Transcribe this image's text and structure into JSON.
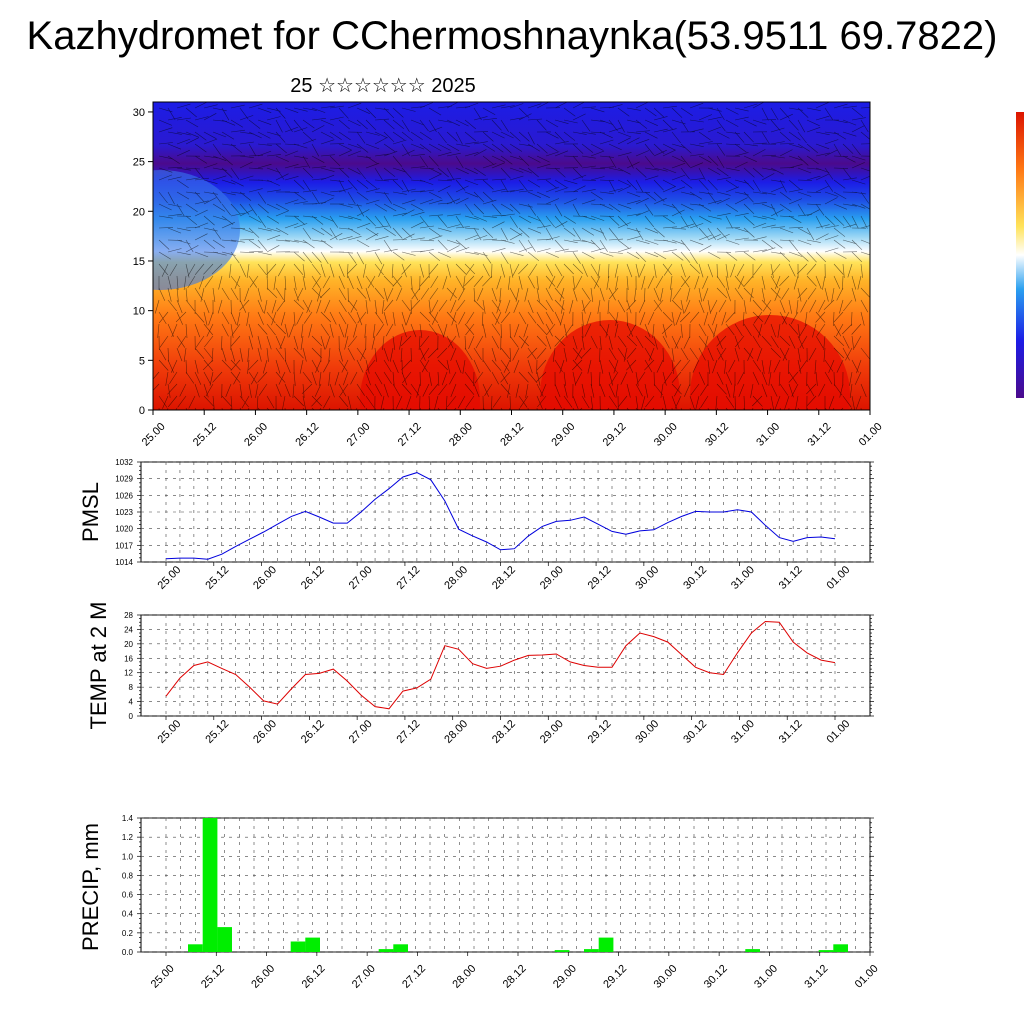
{
  "title": "Kazhydromet for CChermoshnaynka(53.9511 69.7822)",
  "subtitle": "25 ☆☆☆☆☆☆ 2025",
  "time_labels": [
    "25.00",
    "25.12",
    "26.00",
    "26.12",
    "27.00",
    "27.12",
    "28.00",
    "28.12",
    "29.00",
    "29.12",
    "30.00",
    "30.12",
    "31.00",
    "31.12",
    "01.00"
  ],
  "colors": {
    "pmsl_line": "#0000dd",
    "temp_line": "#dd0000",
    "precip_bar": "#00ee00"
  },
  "chart_data": [
    {
      "type": "heatmap",
      "title": "",
      "xlabel": "",
      "ylabel": "",
      "x_tick_labels": [
        "25.00",
        "25.12",
        "26.00",
        "26.12",
        "27.00",
        "27.12",
        "28.00",
        "28.12",
        "29.00",
        "29.12",
        "30.00",
        "30.12",
        "31.00",
        "31.12",
        "01.00"
      ],
      "y_ticks": [
        0,
        5,
        10,
        15,
        20,
        25,
        30
      ],
      "ylim": [
        0,
        31
      ],
      "colormap": [
        "#4b0a8c",
        "#1c1ce6",
        "#1e50e6",
        "#2aa0f0",
        "#9fd8f5",
        "#ffffff",
        "#ffe35a",
        "#ffb428",
        "#ff7814",
        "#f03c0a",
        "#dc1400"
      ],
      "overlay": "wind barbs"
    },
    {
      "type": "line",
      "ylabel": "PMSL",
      "ylim": [
        1014,
        1032
      ],
      "y_ticks": [
        1014,
        1017,
        1020,
        1023,
        1026,
        1029,
        1032
      ],
      "x_tick_labels": [
        "25.00",
        "25.12",
        "26.00",
        "26.12",
        "27.00",
        "27.12",
        "28.00",
        "28.12",
        "29.00",
        "29.12",
        "30.00",
        "30.12",
        "31.00",
        "31.12",
        "01.00"
      ],
      "x_hours": [
        0,
        3,
        6,
        9,
        12,
        15,
        18,
        21,
        24,
        27,
        30,
        33,
        36,
        39,
        42,
        45,
        48,
        51,
        54,
        57,
        60,
        63,
        66,
        69,
        72,
        75,
        78,
        81,
        84,
        87,
        90,
        93,
        96,
        99,
        102,
        105,
        108,
        111,
        114,
        117,
        120,
        123,
        126,
        129,
        132,
        135,
        138,
        141,
        144
      ],
      "values": [
        1014.6,
        1014.7,
        1014.7,
        1014.5,
        1015.4,
        1016.8,
        1018.1,
        1019.4,
        1020.8,
        1022.2,
        1023.1,
        1022.1,
        1021.0,
        1021.0,
        1023.0,
        1025.3,
        1027.2,
        1029.3,
        1030.1,
        1028.8,
        1025.0,
        1019.9,
        1018.7,
        1017.6,
        1016.2,
        1016.4,
        1018.7,
        1020.4,
        1021.3,
        1021.5,
        1022.1,
        1020.8,
        1019.5,
        1019.0,
        1019.6,
        1019.8,
        1021.1,
        1022.2,
        1023.1,
        1023.0,
        1023.0,
        1023.4,
        1023.0,
        1020.6,
        1018.4,
        1017.7,
        1018.4,
        1018.5,
        1018.2
      ]
    },
    {
      "type": "line",
      "ylabel": "TEMP at 2 M",
      "ylim": [
        0,
        28
      ],
      "y_ticks": [
        0,
        4,
        8,
        12,
        16,
        20,
        24,
        28
      ],
      "x_tick_labels": [
        "25.00",
        "25.12",
        "26.00",
        "26.12",
        "27.00",
        "27.12",
        "28.00",
        "28.12",
        "29.00",
        "29.12",
        "30.00",
        "30.12",
        "31.00",
        "31.12",
        "01.00"
      ],
      "x_hours": [
        0,
        3,
        6,
        9,
        12,
        15,
        18,
        21,
        24,
        27,
        30,
        33,
        36,
        39,
        42,
        45,
        48,
        51,
        54,
        57,
        60,
        63,
        66,
        69,
        72,
        75,
        78,
        81,
        84,
        87,
        90,
        93,
        96,
        99,
        102,
        105,
        108,
        111,
        114,
        117,
        120,
        123,
        126,
        129,
        132,
        135,
        138,
        141,
        144
      ],
      "values": [
        5.5,
        10.5,
        14.0,
        15.0,
        13.2,
        11.5,
        8.0,
        4.2,
        3.3,
        7.5,
        11.5,
        11.8,
        13.0,
        9.7,
        5.8,
        2.6,
        2.0,
        6.9,
        7.8,
        10.2,
        19.5,
        18.5,
        14.5,
        13.2,
        13.8,
        15.5,
        16.8,
        16.9,
        17.2,
        15.0,
        14.0,
        13.5,
        13.5,
        19.5,
        23.0,
        22.0,
        20.5,
        17.0,
        13.5,
        12.0,
        11.5,
        17.5,
        23.0,
        26.2,
        26.0,
        20.5,
        17.5,
        15.5,
        14.8
      ]
    },
    {
      "type": "bar",
      "ylabel": "PRECIP, mm",
      "ylim": [
        0,
        1.4
      ],
      "y_ticks": [
        0.0,
        0.2,
        0.4,
        0.6,
        0.8,
        1.0,
        1.2,
        1.4
      ],
      "x_tick_labels": [
        "25.00",
        "25.12",
        "26.00",
        "26.12",
        "27.00",
        "27.12",
        "28.00",
        "28.12",
        "29.00",
        "29.12",
        "30.00",
        "30.12",
        "31.00",
        "31.12",
        "01.00"
      ],
      "bars": [
        {
          "hour": 6,
          "value": 0.08
        },
        {
          "hour": 9,
          "value": 1.4
        },
        {
          "hour": 12,
          "value": 0.26
        },
        {
          "hour": 27,
          "value": 0.11
        },
        {
          "hour": 30,
          "value": 0.15
        },
        {
          "hour": 45,
          "value": 0.03
        },
        {
          "hour": 48,
          "value": 0.08
        },
        {
          "hour": 81,
          "value": 0.02
        },
        {
          "hour": 87,
          "value": 0.03
        },
        {
          "hour": 90,
          "value": 0.15
        },
        {
          "hour": 120,
          "value": 0.03
        },
        {
          "hour": 135,
          "value": 0.02
        },
        {
          "hour": 138,
          "value": 0.08
        }
      ]
    }
  ]
}
